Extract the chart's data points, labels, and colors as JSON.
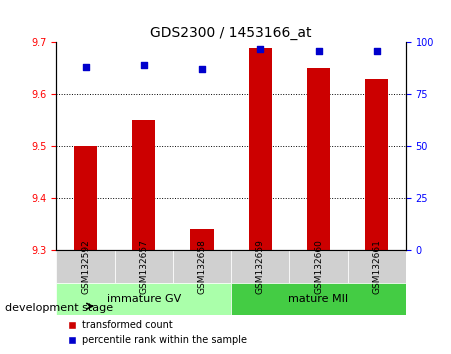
{
  "title": "GDS2300 / 1453166_at",
  "categories": [
    "GSM132592",
    "GSM132657",
    "GSM132658",
    "GSM132659",
    "GSM132660",
    "GSM132661"
  ],
  "bar_values": [
    9.5,
    9.55,
    9.34,
    9.69,
    9.65,
    9.63
  ],
  "percentile_values": [
    88,
    89,
    87,
    97,
    96,
    96
  ],
  "ylim_left": [
    9.3,
    9.7
  ],
  "ylim_right": [
    0,
    100
  ],
  "yticks_left": [
    9.3,
    9.4,
    9.5,
    9.6,
    9.7
  ],
  "yticks_right": [
    0,
    25,
    50,
    75,
    100
  ],
  "bar_color": "#cc0000",
  "dot_color": "#0000cc",
  "background_plot": "#ffffff",
  "background_xticklabels": "#d3d3d3",
  "group1_label": "immature GV",
  "group2_label": "mature MII",
  "group1_color": "#aaffaa",
  "group2_color": "#44cc44",
  "group1_indices": [
    0,
    1,
    2
  ],
  "group2_indices": [
    3,
    4,
    5
  ],
  "xlabel_left": "development stage",
  "legend_bar": "transformed count",
  "legend_dot": "percentile rank within the sample",
  "base_value": 9.3
}
